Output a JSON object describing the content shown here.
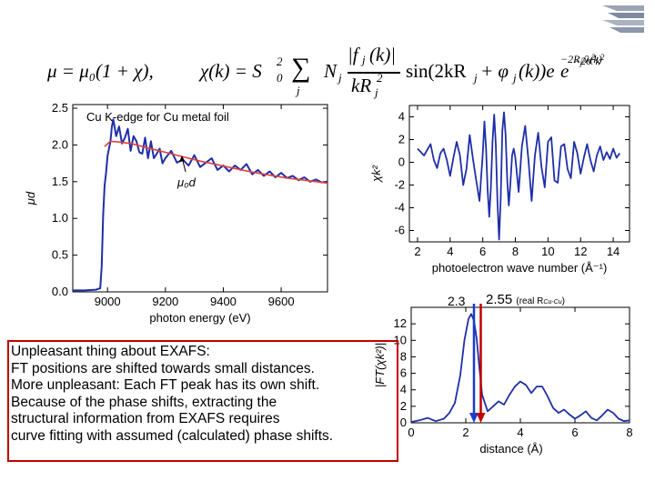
{
  "equations": {
    "mu": "μ = μ₀(1 + χ),",
    "chi_lhs": "χ(k) = S",
    "chi_sub": "0",
    "chi_sup": "2",
    "sum": "∑",
    "sum_index": "j",
    "nj": "N",
    "nj_sub": "j",
    "frac_num": "|f",
    "frac_num_sub": "j",
    "frac_num_tail": "(k)|",
    "frac_den": "kR",
    "frac_den_sub": "j",
    "frac_den_sup": "2",
    "sin_part": "sin(2kR",
    "sin_sub": "j",
    "sin_tail": " + φ",
    "phi_sub": "j",
    "sin_end": "(k))e",
    "exp1": "−2R",
    "exp1_sub": "j",
    "exp1_tail": "/λ(k)",
    "e2": "e",
    "exp2": "−2σ",
    "exp2_sup": "2",
    "exp2_tail": "k",
    "exp2_tail_sup": "2"
  },
  "note": {
    "lines": [
      "Unpleasant thing about EXAFS:",
      "FT positions are shifted towards small distances.",
      "More unpleasant: Each FT peak has its own shift.",
      "Because of the phase shifts, extracting the",
      "structural information from EXAFS requires",
      "curve fitting with assumed (calculated) phase shifts."
    ]
  },
  "markers": {
    "left_value": "2.3",
    "right_value": "2.55",
    "right_note": "(real R",
    "right_note_sub": "Cu-Cu",
    "right_note_end": ")"
  },
  "colors": {
    "data_blue": "#1f2fa8",
    "fit_red": "#e0403a",
    "note_border": "#c00000",
    "marker_blue": "#1a3ccc",
    "marker_red": "#c00000"
  },
  "chart_data": [
    {
      "type": "line",
      "title": "Cu K-edge for Cu metal foil",
      "xlabel": "photon energy (eV)",
      "ylabel": "μd",
      "annotation": "μ₀d",
      "xlim": [
        8880,
        9760
      ],
      "ylim": [
        0.0,
        2.55
      ],
      "x_ticks": [
        9000,
        9200,
        9400,
        9600
      ],
      "y_ticks": [
        "0.0",
        "0.5",
        "1.0",
        "1.5",
        "2.0",
        "2.5"
      ],
      "series": [
        {
          "x": [
            8880,
            8920,
            8960,
            8975,
            8980,
            8985,
            8990,
            8995,
            9000,
            9005,
            9010,
            9015,
            9020,
            9030,
            9040,
            9050,
            9060,
            9070,
            9080,
            9090,
            9100,
            9110,
            9120,
            9130,
            9140,
            9150,
            9160,
            9170,
            9180,
            9190,
            9200,
            9220,
            9240,
            9260,
            9280,
            9300,
            9320,
            9340,
            9360,
            9380,
            9400,
            9420,
            9440,
            9460,
            9480,
            9500,
            9520,
            9540,
            9560,
            9580,
            9600,
            9620,
            9640,
            9660,
            9680,
            9700,
            9720,
            9740,
            9760
          ],
          "y": [
            0.02,
            0.02,
            0.03,
            0.05,
            0.35,
            1.05,
            1.45,
            1.62,
            1.85,
            1.95,
            2.05,
            2.25,
            2.35,
            2.12,
            2.25,
            2.02,
            2.1,
            2.22,
            1.92,
            2.12,
            2.05,
            1.9,
            1.88,
            2.1,
            1.82,
            2.05,
            1.82,
            1.88,
            1.95,
            1.75,
            1.82,
            1.92,
            1.76,
            1.8,
            1.72,
            1.86,
            1.7,
            1.76,
            1.82,
            1.66,
            1.72,
            1.64,
            1.72,
            1.66,
            1.74,
            1.6,
            1.66,
            1.58,
            1.64,
            1.56,
            1.62,
            1.55,
            1.58,
            1.52,
            1.56,
            1.5,
            1.53,
            1.49,
            1.5
          ]
        },
        {
          "x": [
            8990,
            9010,
            9040,
            9080,
            9120,
            9160,
            9200,
            9260,
            9320,
            9380,
            9440,
            9500,
            9560,
            9620,
            9680,
            9740,
            9760
          ],
          "y": [
            1.98,
            2.05,
            2.04,
            2.02,
            1.98,
            1.94,
            1.9,
            1.84,
            1.78,
            1.73,
            1.68,
            1.63,
            1.59,
            1.55,
            1.52,
            1.49,
            1.48
          ]
        }
      ]
    },
    {
      "type": "line",
      "xlabel": "photoelectron wave number (Å⁻¹)",
      "ylabel": "χk²",
      "xlim": [
        1.5,
        15
      ],
      "ylim": [
        -7,
        5
      ],
      "x_ticks": [
        2,
        4,
        6,
        8,
        10,
        12,
        14
      ],
      "y_ticks": [
        -6,
        -4,
        -2,
        0,
        2,
        4
      ],
      "series": [
        {
          "x": [
            2.0,
            2.4,
            2.8,
            3.0,
            3.2,
            3.4,
            3.6,
            3.8,
            4.0,
            4.2,
            4.4,
            4.6,
            4.8,
            5.0,
            5.2,
            5.4,
            5.6,
            5.8,
            6.0,
            6.1,
            6.2,
            6.3,
            6.4,
            6.5,
            6.6,
            6.7,
            6.8,
            6.9,
            7.0,
            7.1,
            7.2,
            7.3,
            7.4,
            7.5,
            7.6,
            7.7,
            7.8,
            7.9,
            8.0,
            8.2,
            8.4,
            8.6,
            8.8,
            9.0,
            9.2,
            9.4,
            9.6,
            9.8,
            10.0,
            10.2,
            10.4,
            10.6,
            10.8,
            11.0,
            11.2,
            11.4,
            11.6,
            11.8,
            12.0,
            12.2,
            12.4,
            12.6,
            12.8,
            13.0,
            13.2,
            13.4,
            13.6,
            13.8,
            14.0,
            14.2,
            14.4
          ],
          "y": [
            1.2,
            0.6,
            1.6,
            0.2,
            -0.5,
            0.8,
            1.2,
            0.2,
            -1.2,
            0.4,
            1.8,
            0.6,
            -2.0,
            -0.6,
            2.4,
            0.3,
            -1.6,
            -3.4,
            0.8,
            3.6,
            1.2,
            -2.4,
            -4.8,
            -2.2,
            1.8,
            4.2,
            1.6,
            -3.4,
            -6.8,
            -3.2,
            2.8,
            4.4,
            2.4,
            -1.6,
            -3.8,
            -1.8,
            0.6,
            1.2,
            0.4,
            -2.6,
            1.4,
            3.2,
            0.2,
            -3.4,
            0.6,
            2.6,
            -0.4,
            -2.2,
            1.8,
            2.2,
            -1.6,
            -1.8,
            1.4,
            1.6,
            -0.6,
            -1.4,
            1.8,
            0.8,
            -1.0,
            0.4,
            1.6,
            0.2,
            -0.8,
            0.6,
            1.4,
            0.2,
            0.9,
            0.3,
            1.2,
            0.4,
            0.8
          ]
        }
      ]
    },
    {
      "type": "line",
      "xlabel": "distance (Å)",
      "ylabel": "|FT(χk²)|",
      "xlim": [
        0,
        8
      ],
      "ylim": [
        0,
        14
      ],
      "x_ticks": [
        0,
        2,
        4,
        6,
        8
      ],
      "y_ticks": [
        0,
        2,
        4,
        6,
        8,
        10,
        12
      ],
      "series": [
        {
          "x": [
            0.0,
            0.3,
            0.6,
            0.9,
            1.2,
            1.4,
            1.6,
            1.8,
            1.95,
            2.1,
            2.2,
            2.3,
            2.4,
            2.5,
            2.6,
            2.8,
            3.0,
            3.2,
            3.4,
            3.6,
            3.8,
            4.0,
            4.2,
            4.4,
            4.6,
            4.8,
            5.0,
            5.2,
            5.4,
            5.6,
            5.8,
            6.0,
            6.2,
            6.4,
            6.6,
            6.8,
            7.0,
            7.2,
            7.4,
            7.6,
            7.8,
            8.0
          ],
          "y": [
            0.1,
            0.3,
            0.6,
            0.2,
            0.5,
            1.2,
            2.4,
            5.8,
            10.0,
            12.6,
            13.2,
            12.4,
            10.2,
            6.6,
            3.4,
            1.4,
            2.0,
            2.6,
            2.2,
            3.4,
            4.4,
            5.0,
            4.6,
            3.6,
            4.4,
            4.4,
            3.2,
            1.8,
            1.2,
            1.6,
            1.0,
            0.5,
            0.9,
            1.4,
            0.6,
            0.3,
            0.9,
            1.6,
            1.2,
            0.5,
            0.2,
            0.3
          ]
        }
      ]
    }
  ]
}
